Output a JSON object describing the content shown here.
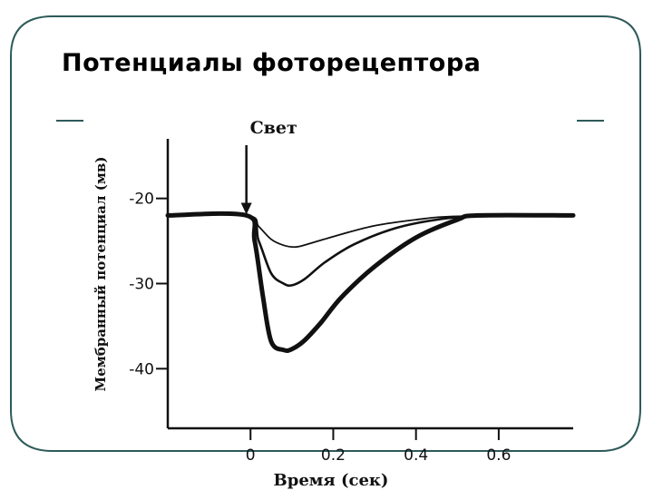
{
  "slide": {
    "title": "Потенциалы фоторецептора"
  },
  "chart_data": {
    "type": "line",
    "title": "",
    "ylabel": "Мембранный потенциал (мв)",
    "xlabel": "Время (сек)",
    "xlim": [
      -0.2,
      0.78
    ],
    "ylim": [
      -47,
      -13
    ],
    "xticks": [
      {
        "value": 0,
        "label": "0"
      },
      {
        "value": 0.2,
        "label": "0.2"
      },
      {
        "value": 0.4,
        "label": "0.4"
      },
      {
        "value": 0.6,
        "label": "0.6"
      }
    ],
    "yticks": [
      {
        "value": -20,
        "label": "-20"
      },
      {
        "value": -30,
        "label": "-30"
      },
      {
        "value": -40,
        "label": "-40"
      }
    ],
    "annotation": {
      "label": "Свет",
      "x": -0.01
    },
    "series": [
      {
        "x": [
          -0.2,
          -0.01,
          0.02,
          0.05,
          0.08,
          0.11,
          0.15,
          0.22,
          0.3,
          0.4,
          0.5,
          0.78
        ],
        "y": [
          -22,
          -22,
          -23.3,
          -24.8,
          -25.5,
          -25.7,
          -25.2,
          -24.2,
          -23.2,
          -22.5,
          -22.1,
          -22
        ]
      },
      {
        "x": [
          -0.2,
          -0.01,
          0.02,
          0.05,
          0.08,
          0.1,
          0.13,
          0.18,
          0.25,
          0.35,
          0.45,
          0.55,
          0.78
        ],
        "y": [
          -22,
          -22,
          -25,
          -28.8,
          -30,
          -30.2,
          -29.5,
          -27.5,
          -25.4,
          -23.5,
          -22.5,
          -22.1,
          -22
        ]
      },
      {
        "x": [
          -0.2,
          -0.01,
          0.01,
          0.03,
          0.05,
          0.08,
          0.1,
          0.13,
          0.17,
          0.22,
          0.3,
          0.4,
          0.5,
          0.55,
          0.78
        ],
        "y": [
          -22,
          -22,
          -25,
          -31.5,
          -36.8,
          -37.8,
          -37.7,
          -36.7,
          -34.6,
          -31.6,
          -28,
          -24.6,
          -22.5,
          -22,
          -22
        ]
      }
    ]
  }
}
